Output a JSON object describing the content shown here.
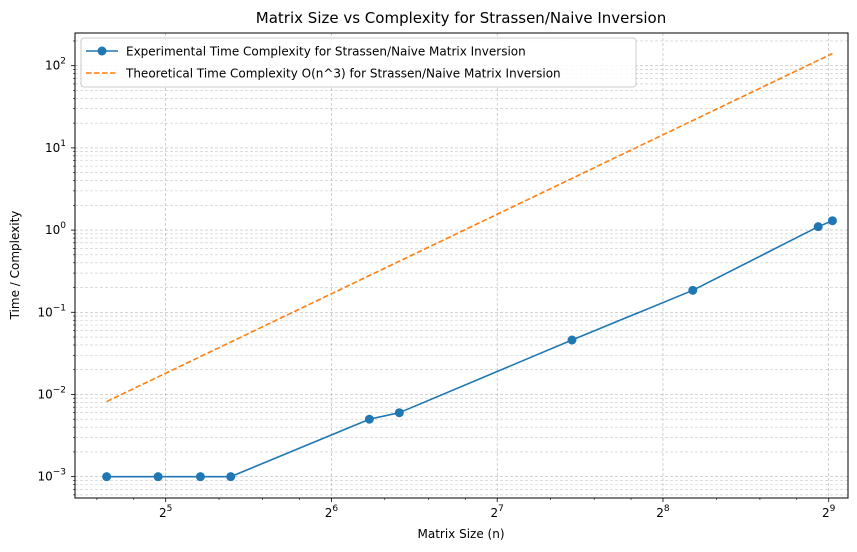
{
  "chart_data": {
    "type": "line",
    "title": "Matrix Size vs Complexity for Strassen/Naive Inversion",
    "xlabel": "Matrix Size (n)",
    "ylabel": "Time / Complexity",
    "x_scale": "log2",
    "y_scale": "log10",
    "xlim": [
      21.9,
      555
    ],
    "ylim": [
      0.00055,
      250
    ],
    "x_ticks": [
      {
        "value": 32,
        "base": "2",
        "exp": "5"
      },
      {
        "value": 64,
        "base": "2",
        "exp": "6"
      },
      {
        "value": 128,
        "base": "2",
        "exp": "7"
      },
      {
        "value": 256,
        "base": "2",
        "exp": "8"
      },
      {
        "value": 512,
        "base": "2",
        "exp": "9"
      }
    ],
    "y_ticks": [
      {
        "value": 0.001,
        "base": "10",
        "exp": "−3"
      },
      {
        "value": 0.01,
        "base": "10",
        "exp": "−2"
      },
      {
        "value": 0.1,
        "base": "10",
        "exp": "−1"
      },
      {
        "value": 1,
        "base": "10",
        "exp": "0"
      },
      {
        "value": 10,
        "base": "10",
        "exp": "1"
      },
      {
        "value": 100,
        "base": "10",
        "exp": "2"
      }
    ],
    "grid": true,
    "legend_position": "upper-left",
    "series": [
      {
        "name": "Experimental Time Complexity for Strassen/Naive Matrix Inversion",
        "color": "#1f77b4",
        "style": "solid",
        "marker": "circle",
        "points": [
          {
            "x": 25,
            "y": 0.001
          },
          {
            "x": 31,
            "y": 0.001
          },
          {
            "x": 37,
            "y": 0.001
          },
          {
            "x": 42,
            "y": 0.001
          },
          {
            "x": 75,
            "y": 0.005
          },
          {
            "x": 85,
            "y": 0.006
          },
          {
            "x": 175,
            "y": 0.046
          },
          {
            "x": 290,
            "y": 0.185
          },
          {
            "x": 490,
            "y": 1.1
          },
          {
            "x": 520,
            "y": 1.3
          }
        ]
      },
      {
        "name": "Theoretical Time Complexity O(n^3) for Strassen/Naive Matrix Inversion",
        "color": "#ff7f0e",
        "style": "dashed",
        "marker": "none",
        "points": [
          {
            "x": 25,
            "y": 0.0082
          },
          {
            "x": 520,
            "y": 140.6
          }
        ]
      }
    ]
  }
}
